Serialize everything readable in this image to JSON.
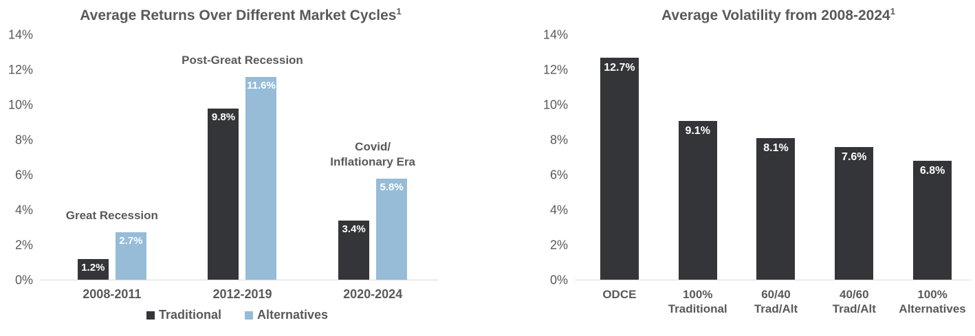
{
  "colors": {
    "title_text": "#595959",
    "axis_text": "#595959",
    "annotation_text": "#595959",
    "traditional_bar": "#343539",
    "alternatives_bar": "#96BCD7",
    "value_label_text": "#FFFFFF",
    "axis_line": "#D9D9D9"
  },
  "chart_data": [
    {
      "type": "bar",
      "title": "Average Returns Over Different Market Cycles",
      "title_superscript": "1",
      "categories": [
        "2008-2011",
        "2012-2019",
        "2020-2024"
      ],
      "series": [
        {
          "name": "Traditional",
          "color": "#343539",
          "values": [
            1.2,
            9.8,
            3.4
          ],
          "labels": [
            "1.2%",
            "9.8%",
            "3.4%"
          ]
        },
        {
          "name": "Alternatives",
          "color": "#96BCD7",
          "values": [
            2.7,
            11.6,
            5.8
          ],
          "labels": [
            "2.7%",
            "11.6%",
            "5.8%"
          ]
        }
      ],
      "annotations": [
        {
          "text": "Great Recession",
          "category_index": 0
        },
        {
          "text": "Post-Great Recession",
          "category_index": 1
        },
        {
          "text": "Covid/\nInflationary Era",
          "category_index": 2
        }
      ],
      "ylim": [
        0,
        14
      ],
      "yticks": [
        "14%",
        "12%",
        "10%",
        "8%",
        "6%",
        "4%",
        "2%",
        "0%"
      ],
      "grid": false,
      "legend": {
        "position": "bottom",
        "entries": [
          "Traditional",
          "Alternatives"
        ]
      }
    },
    {
      "type": "bar",
      "title": "Average Volatility from 2008-2024",
      "title_superscript": "1",
      "categories": [
        "ODCE",
        "100%\nTraditional",
        "60/40\nTrad/Alt",
        "40/60\nTrad/Alt",
        "100%\nAlternatives"
      ],
      "values": [
        12.7,
        9.1,
        8.1,
        7.6,
        6.8
      ],
      "labels": [
        "12.7%",
        "9.1%",
        "8.1%",
        "7.6%",
        "6.8%"
      ],
      "bar_color": "#343539",
      "ylim": [
        0,
        14
      ],
      "yticks": [
        "14%",
        "12%",
        "10%",
        "8%",
        "6%",
        "4%",
        "2%",
        "0%"
      ],
      "grid": false,
      "legend": null
    }
  ]
}
